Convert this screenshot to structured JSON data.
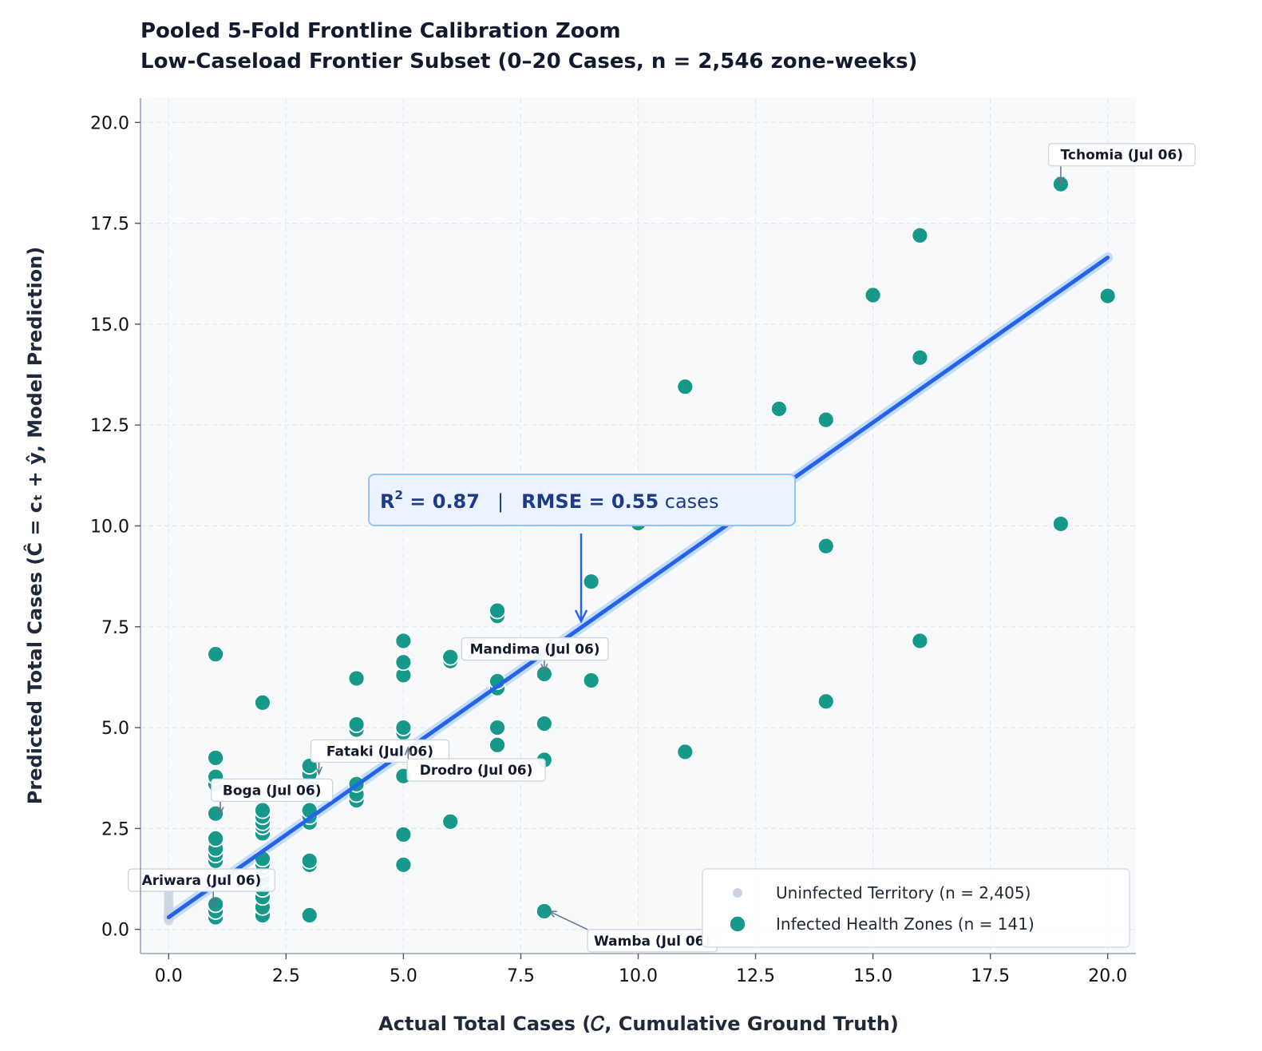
{
  "chart_data": {
    "type": "scatter",
    "title": "Pooled 5-Fold Frontline Calibration Zoom",
    "subtitle": "Low-Caseload Frontier Subset (0–20 Cases, n = 2,546 zone-weeks)",
    "xlabel": "Actual Total Cases (𝐶, Cumulative Ground Truth)",
    "ylabel": "Predicted Total Cases (Ĉ = cₜ + ŷ, Model Prediction)",
    "xlim": [
      -0.6,
      20.6
    ],
    "ylim": [
      -0.6,
      20.6
    ],
    "x_ticks": [
      0.0,
      2.5,
      5.0,
      7.5,
      10.0,
      12.5,
      15.0,
      17.5,
      20.0
    ],
    "y_ticks": [
      0.0,
      2.5,
      5.0,
      7.5,
      10.0,
      12.5,
      15.0,
      17.5,
      20.0
    ],
    "x_tick_labels": [
      "0.0",
      "2.5",
      "5.0",
      "7.5",
      "10.0",
      "12.5",
      "15.0",
      "17.5",
      "20.0"
    ],
    "y_tick_labels": [
      "0.0",
      "2.5",
      "5.0",
      "7.5",
      "10.0",
      "12.5",
      "15.0",
      "17.5",
      "20.0"
    ],
    "grid": true,
    "legend_position": "bottom-right",
    "fit_line": {
      "x": [
        0,
        20
      ],
      "y": [
        0.3,
        16.65
      ],
      "color": "#2563eb"
    },
    "stats_box": {
      "r2_label": "R",
      "r2_sup": "2",
      "r2_value": " = 0.87",
      "separator": "|",
      "rmse_label": "RMSE = 0.55",
      "rmse_unit": " cases"
    },
    "series": [
      {
        "name": "Uninfected Territory (n = 2,405)",
        "color": "#cbd5e1",
        "points": [
          [
            0,
            0.22
          ],
          [
            0,
            0.3
          ],
          [
            0,
            0.38
          ],
          [
            0,
            0.45
          ],
          [
            0,
            0.52
          ],
          [
            0,
            0.6
          ],
          [
            0,
            0.68
          ],
          [
            0,
            0.75
          ],
          [
            0,
            0.85
          ],
          [
            0,
            0.95
          ]
        ]
      },
      {
        "name": "Infected Health Zones (n = 141)",
        "color": "#16998a",
        "points": [
          [
            1,
            0.3
          ],
          [
            1,
            0.45
          ],
          [
            1,
            0.62
          ],
          [
            1,
            1.7
          ],
          [
            1,
            1.85
          ],
          [
            1,
            2.0
          ],
          [
            1,
            2.25
          ],
          [
            1,
            2.87
          ],
          [
            1,
            3.6
          ],
          [
            1,
            3.78
          ],
          [
            1,
            4.25
          ],
          [
            1,
            6.82
          ],
          [
            2,
            0.35
          ],
          [
            2,
            0.55
          ],
          [
            2,
            0.8
          ],
          [
            2,
            1.0
          ],
          [
            2,
            1.25
          ],
          [
            2,
            1.5
          ],
          [
            2,
            1.62
          ],
          [
            2,
            1.75
          ],
          [
            2,
            2.38
          ],
          [
            2,
            2.55
          ],
          [
            2,
            2.65
          ],
          [
            2,
            2.8
          ],
          [
            2,
            2.95
          ],
          [
            2,
            5.62
          ],
          [
            3,
            0.35
          ],
          [
            3,
            1.6
          ],
          [
            3,
            1.7
          ],
          [
            3,
            2.65
          ],
          [
            3,
            2.8
          ],
          [
            3,
            2.95
          ],
          [
            3,
            3.35
          ],
          [
            3,
            3.55
          ],
          [
            3,
            3.7
          ],
          [
            3,
            3.85
          ],
          [
            3,
            4.05
          ],
          [
            4,
            3.2
          ],
          [
            4,
            3.35
          ],
          [
            4,
            3.6
          ],
          [
            4,
            4.95
          ],
          [
            4,
            5.08
          ],
          [
            4,
            6.22
          ],
          [
            5,
            1.6
          ],
          [
            5,
            2.35
          ],
          [
            5,
            3.8
          ],
          [
            5,
            4.88
          ],
          [
            5,
            5.0
          ],
          [
            5,
            6.3
          ],
          [
            5,
            6.62
          ],
          [
            5,
            7.15
          ],
          [
            6,
            2.67
          ],
          [
            6,
            6.65
          ],
          [
            6,
            6.75
          ],
          [
            7,
            4.57
          ],
          [
            7,
            5.0
          ],
          [
            7,
            5.98
          ],
          [
            7,
            6.15
          ],
          [
            7,
            7.77
          ],
          [
            7,
            7.9
          ],
          [
            8,
            0.45
          ],
          [
            8,
            4.2
          ],
          [
            8,
            5.1
          ],
          [
            8,
            6.33
          ],
          [
            9,
            6.17
          ],
          [
            9,
            8.62
          ],
          [
            9,
            10.7
          ],
          [
            10,
            10.07
          ],
          [
            11,
            4.4
          ],
          [
            11,
            13.45
          ],
          [
            13,
            12.9
          ],
          [
            14,
            5.65
          ],
          [
            14,
            9.5
          ],
          [
            14,
            12.63
          ],
          [
            15,
            15.72
          ],
          [
            16,
            7.15
          ],
          [
            16,
            14.17
          ],
          [
            16,
            17.2
          ],
          [
            19,
            10.05
          ],
          [
            19,
            18.47
          ],
          [
            20,
            15.7
          ]
        ]
      }
    ],
    "annotations": [
      {
        "text": "Tchomia (Jul 06)",
        "point": [
          19,
          18.47
        ],
        "label_at": [
          20.3,
          19.2
        ]
      },
      {
        "text": "Mandima (Jul 06)",
        "point": [
          8,
          6.4
        ],
        "label_at": [
          7.8,
          6.95
        ]
      },
      {
        "text": "Fataki (Jul 06)",
        "point": [
          3.2,
          3.85
        ],
        "label_at": [
          4.5,
          4.42
        ]
      },
      {
        "text": "Drodro (Jul 06)",
        "point": [
          5.1,
          4.5
        ],
        "label_at": [
          6.55,
          3.95
        ]
      },
      {
        "text": "Boga (Jul 06)",
        "point": [
          1.1,
          2.85
        ],
        "label_at": [
          2.2,
          3.45
        ]
      },
      {
        "text": "Ariwara (Jul 06)",
        "point": [
          0.95,
          0.55
        ],
        "label_at": [
          0.7,
          1.22
        ]
      },
      {
        "text": "Wamba (Jul 06)",
        "point": [
          8.1,
          0.45
        ],
        "label_at": [
          10.3,
          -0.28
        ]
      }
    ]
  }
}
